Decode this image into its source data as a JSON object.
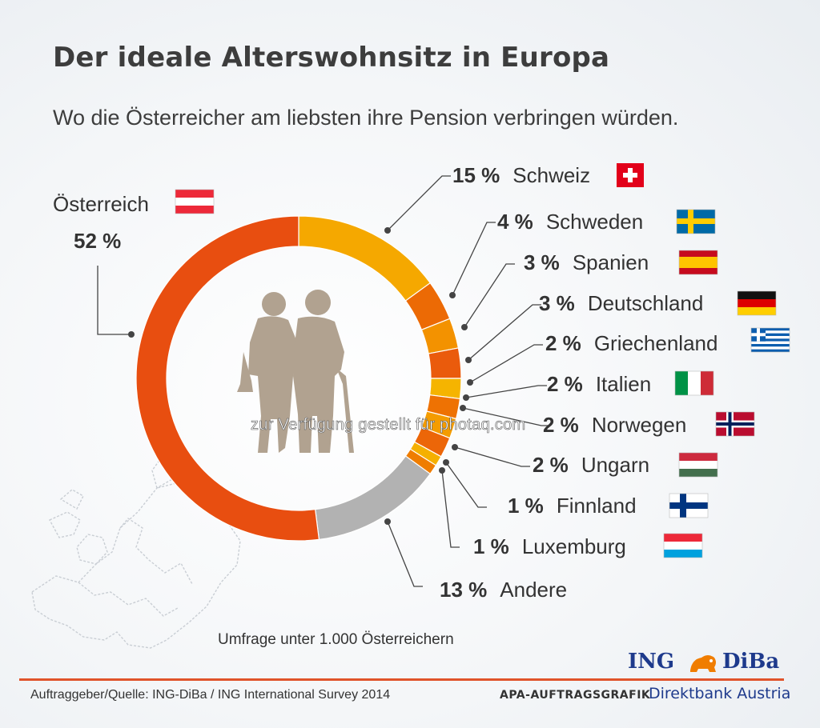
{
  "header": {
    "title": "Der ideale Alterswohnsitz in Europa",
    "subtitle": "Wo die Österreicher am liebsten ihre Pension verbringen würden."
  },
  "chart_data": {
    "type": "pie",
    "variant": "donut",
    "title": "Der ideale Alterswohnsitz in Europa",
    "subtitle": "Wo die Österreicher am liebsten ihre Pension verbringen würden.",
    "unit": "%",
    "slices": [
      {
        "label": "Schweiz",
        "value": 15,
        "display": "15 %",
        "color": "#f5a800",
        "flag": "switzerland-flag"
      },
      {
        "label": "Schweden",
        "value": 4,
        "display": "4 %",
        "color": "#ec6a05",
        "flag": "sweden-flag"
      },
      {
        "label": "Spanien",
        "value": 3,
        "display": "3 %",
        "color": "#f39200",
        "flag": "spain-flag"
      },
      {
        "label": "Deutschland",
        "value": 3,
        "display": "3 %",
        "color": "#ea5b0c",
        "flag": "germany-flag"
      },
      {
        "label": "Griechenland",
        "value": 2,
        "display": "2 %",
        "color": "#f5b400",
        "flag": "greece-flag"
      },
      {
        "label": "Italien",
        "value": 2,
        "display": "2 %",
        "color": "#ee7203",
        "flag": "italy-flag"
      },
      {
        "label": "Norwegen",
        "value": 2,
        "display": "2 %",
        "color": "#f49c00",
        "flag": "norway-flag"
      },
      {
        "label": "Ungarn",
        "value": 2,
        "display": "2 %",
        "color": "#ec6608",
        "flag": "hungary-flag"
      },
      {
        "label": "Finnland",
        "value": 1,
        "display": "1 %",
        "color": "#f5b000",
        "flag": "finland-flag"
      },
      {
        "label": "Luxemburg",
        "value": 1,
        "display": "1 %",
        "color": "#ef7d00",
        "flag": "luxembourg-flag"
      },
      {
        "label": "Andere",
        "value": 13,
        "display": "13 %",
        "color": "#b2b2b2"
      },
      {
        "label": "Österreich",
        "value": 52,
        "display": "52 %",
        "color": "#e84e10",
        "flag": "austria-flag"
      }
    ]
  },
  "notes": {
    "survey": "Umfrage unter 1.000 Österreichern",
    "watermark": "zur Verfügung gestellt für photaq.com"
  },
  "footer": {
    "source": "Auftraggeber/Quelle: ING-DiBa / ING International Survey 2014",
    "apa": "APA-AUFTRAGSGRAFIK",
    "brand_ing": "ING",
    "brand_diba": "DiBa",
    "brand_sub": "Direktbank Austria"
  },
  "colors": {
    "accent": "#e84e10",
    "brand_blue": "#1e3a8c",
    "text": "#3d3d3d"
  }
}
